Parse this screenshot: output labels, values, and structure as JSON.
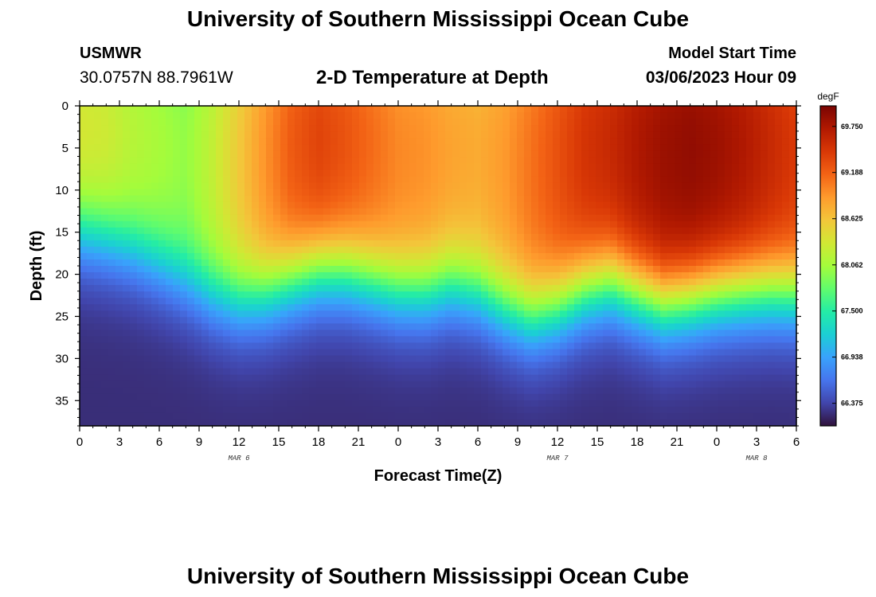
{
  "header": {
    "title": "University of Southern Mississippi Ocean Cube",
    "station": "USMWR",
    "coordinates": "30.0757N  88.7961W",
    "subtitle": "2-D Temperature at Depth",
    "model_start_label": "Model Start Time",
    "model_start_value": "03/06/2023 Hour 09"
  },
  "footer": {
    "title": "University of Southern Mississippi Ocean Cube"
  },
  "chart_data": {
    "type": "heatmap",
    "title": "2-D Temperature at Depth",
    "xlabel": "Forecast Time(Z)",
    "ylabel": "Depth (ft)",
    "x_range_hours": [
      0,
      54
    ],
    "y_range_ft": [
      0,
      38
    ],
    "x_tick_labels": [
      "0",
      "3",
      "6",
      "9",
      "12",
      "15",
      "18",
      "21",
      "0",
      "3",
      "6",
      "9",
      "12",
      "15",
      "18",
      "21",
      "0",
      "3",
      "6"
    ],
    "y_ticks": [
      0,
      5,
      10,
      15,
      20,
      25,
      30,
      35
    ],
    "y_tick_labels": [
      "0",
      "5",
      "10",
      "15",
      "20",
      "25",
      "30",
      "35"
    ],
    "day_labels": [
      {
        "text": "MAR 6",
        "hour": 12
      },
      {
        "text": "MAR 7",
        "hour": 36
      },
      {
        "text": "MAR 8",
        "hour": 51
      }
    ],
    "colorbar": {
      "unit": "degF",
      "min": 66.1,
      "max": 70.0,
      "tick_values": [
        69.75,
        69.188,
        68.625,
        68.062,
        67.5,
        66.938,
        66.375
      ],
      "tick_labels": [
        "69.750",
        "69.188",
        "68.625",
        "68.062",
        "67.500",
        "66.938",
        "66.375"
      ],
      "colors": [
        "#30123b",
        "#4145ab",
        "#4675ed",
        "#39a2fc",
        "#1bcfd4",
        "#24eca6",
        "#61fc6c",
        "#a4fc3b",
        "#d1e834",
        "#f3c63a",
        "#fe9b2d",
        "#f36315",
        "#d93806",
        "#b11901",
        "#7a0402"
      ]
    },
    "temperature_profile": {
      "hours": [
        0,
        2,
        4,
        6,
        8,
        10,
        12,
        14,
        16,
        18,
        20,
        22,
        24,
        26,
        28,
        30,
        32,
        34,
        36,
        38,
        40,
        42,
        44,
        46,
        48,
        50,
        52,
        54
      ],
      "surface_temp_degF": [
        68.4,
        68.35,
        68.2,
        68.1,
        68.0,
        68.25,
        68.6,
        68.95,
        69.25,
        69.4,
        69.3,
        69.15,
        69.0,
        68.95,
        68.85,
        68.8,
        68.9,
        69.1,
        69.3,
        69.5,
        69.6,
        69.75,
        69.85,
        69.9,
        69.85,
        69.75,
        69.6,
        69.45
      ],
      "thermocline_center_ft": [
        15.0,
        15.8,
        17.0,
        18.7,
        20.6,
        22.3,
        23.0,
        22.3,
        20.8,
        19.6,
        19.7,
        20.7,
        21.8,
        22.0,
        21.2,
        22.0,
        23.9,
        25.1,
        24.0,
        22.0,
        21.0,
        22.3,
        23.5,
        23.0,
        22.3,
        22.0,
        21.9,
        22.2
      ],
      "bottom_temp_degF": 66.25
    }
  }
}
